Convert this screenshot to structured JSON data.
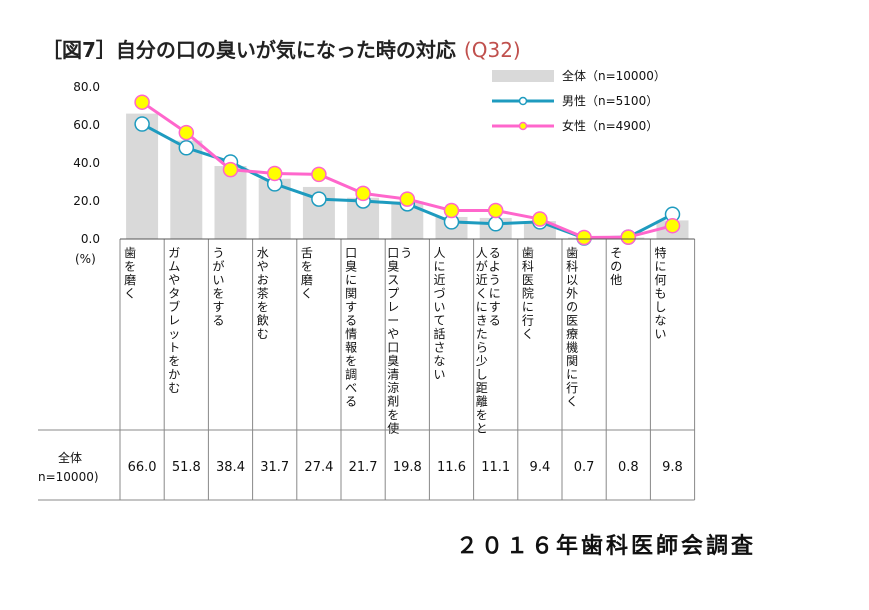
{
  "title": {
    "main": "［図7］自分の口の臭いが気になった時の対応",
    "code": "(Q32)"
  },
  "credit": "２０１６年歯科医師会調査",
  "unit_label": "(%)",
  "table": {
    "row_label_line1": "全体",
    "row_label_line2": "n=10000)"
  },
  "colors": {
    "bar": "#d9d9d9",
    "male": "#1e9bbf",
    "female": "#ff66cc",
    "female_marker": "#ffff00"
  },
  "chart_data": {
    "type": "bar+line",
    "ylim": [
      0,
      80
    ],
    "yticks": [
      "80.0",
      "60.0",
      "40.0",
      "20.0",
      "0.0"
    ],
    "categories": [
      "歯を磨く",
      "ガムやタブレットをかむ",
      "うがいをする",
      "水やお茶を飲む",
      "舌を磨く",
      "口臭に関する情報を調べる",
      "口臭スプレーや口臭清涼剤を使う",
      "人に近づいて話さない",
      "人が近くにきたら少し距離をとるようにする",
      "歯科医院に行く",
      "歯科以外の医療機関に行く",
      "その他",
      "特に何もしない"
    ],
    "table_values": [
      "66.0",
      "51.8",
      "38.4",
      "31.7",
      "27.4",
      "21.7",
      "19.8",
      "11.6",
      "11.1",
      "9.4",
      "0.7",
      "0.8",
      "9.8"
    ],
    "series": [
      {
        "name": "全体（n=10000）",
        "kind": "bar",
        "values": [
          66.0,
          51.8,
          38.4,
          31.7,
          27.4,
          21.7,
          19.8,
          11.6,
          11.1,
          9.4,
          0.7,
          0.8,
          9.8
        ]
      },
      {
        "name": "男性（n=5100）",
        "kind": "line",
        "values": [
          60.5,
          48,
          40.5,
          29,
          21,
          20,
          18.5,
          9,
          8,
          9,
          0.5,
          1,
          13
        ]
      },
      {
        "name": "女性（n=4900）",
        "kind": "line",
        "values": [
          72,
          56,
          36.5,
          34.5,
          34,
          24,
          21,
          15,
          15,
          10.5,
          0.8,
          1,
          7
        ]
      }
    ],
    "legend_position": "top-right",
    "grid": false
  }
}
